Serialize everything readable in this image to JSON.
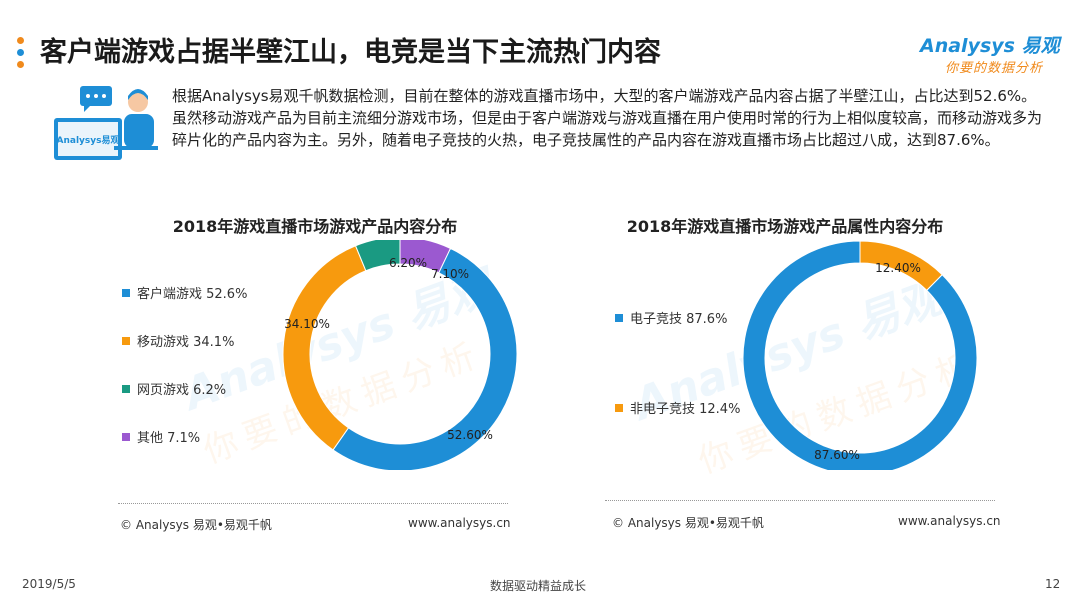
{
  "header": {
    "title": "客户端游戏占据半壁江山，电竞是当下主流热门内容",
    "logo_main": "Analysys 易观",
    "logo_sub": "你要的数据分析",
    "dot_colors": [
      "#f08a1c",
      "#1e8ed6",
      "#f08a1c"
    ]
  },
  "intro": {
    "illustration_label": "Analysys易观",
    "paragraph": "根据Analysys易观千帆数据检测，目前在整体的游戏直播市场中，大型的客户端游戏产品内容占据了半壁江山，占比达到52.6%。虽然移动游戏产品为目前主流细分游戏市场，但是由于客户端游戏与游戏直播在用户使用时常的行为上相似度较高，而移动游戏多为碎片化的产品内容为主。另外，随着电子竞技的火热，电子竞技属性的产品内容在游戏直播市场占比超过八成，达到87.6%。"
  },
  "watermark": {
    "main": "Analysys 易观",
    "sub": "你要的数据分析"
  },
  "chart_data": [
    {
      "type": "pie",
      "title": "2018年游戏直播市场游戏产品内容分布",
      "series": [
        {
          "name": "客户端游戏",
          "value": 52.6,
          "legend": "客户端游戏 52.6%",
          "label": "52.60%",
          "color": "#1e8ed6"
        },
        {
          "name": "移动游戏",
          "value": 34.1,
          "legend": "移动游戏 34.1%",
          "label": "34.10%",
          "color": "#f79a0e"
        },
        {
          "name": "网页游戏",
          "value": 6.2,
          "legend": "网页游戏 6.2%",
          "label": "6.20%",
          "color": "#1a9a82"
        },
        {
          "name": "其他",
          "value": 7.1,
          "legend": "其他 7.1%",
          "label": "7.10%",
          "color": "#9b59d0"
        }
      ],
      "legend_position": "left",
      "source": "© Analysys 易观•易观千帆",
      "url": "www.analysys.cn"
    },
    {
      "type": "pie",
      "title": "2018年游戏直播市场游戏产品属性内容分布",
      "series": [
        {
          "name": "电子竞技",
          "value": 87.6,
          "legend": "电子竞技 87.6%",
          "label": "87.60%",
          "color": "#1e8ed6"
        },
        {
          "name": "非电子竞技",
          "value": 12.4,
          "legend": "非电子竞技 12.4%",
          "label": "12.40%",
          "color": "#f79a0e"
        }
      ],
      "legend_position": "left",
      "source": "© Analysys 易观•易观千帆",
      "url": "www.analysys.cn"
    }
  ],
  "footer": {
    "date": "2019/5/5",
    "slogan": "数据驱动精益成长",
    "page": "12"
  }
}
